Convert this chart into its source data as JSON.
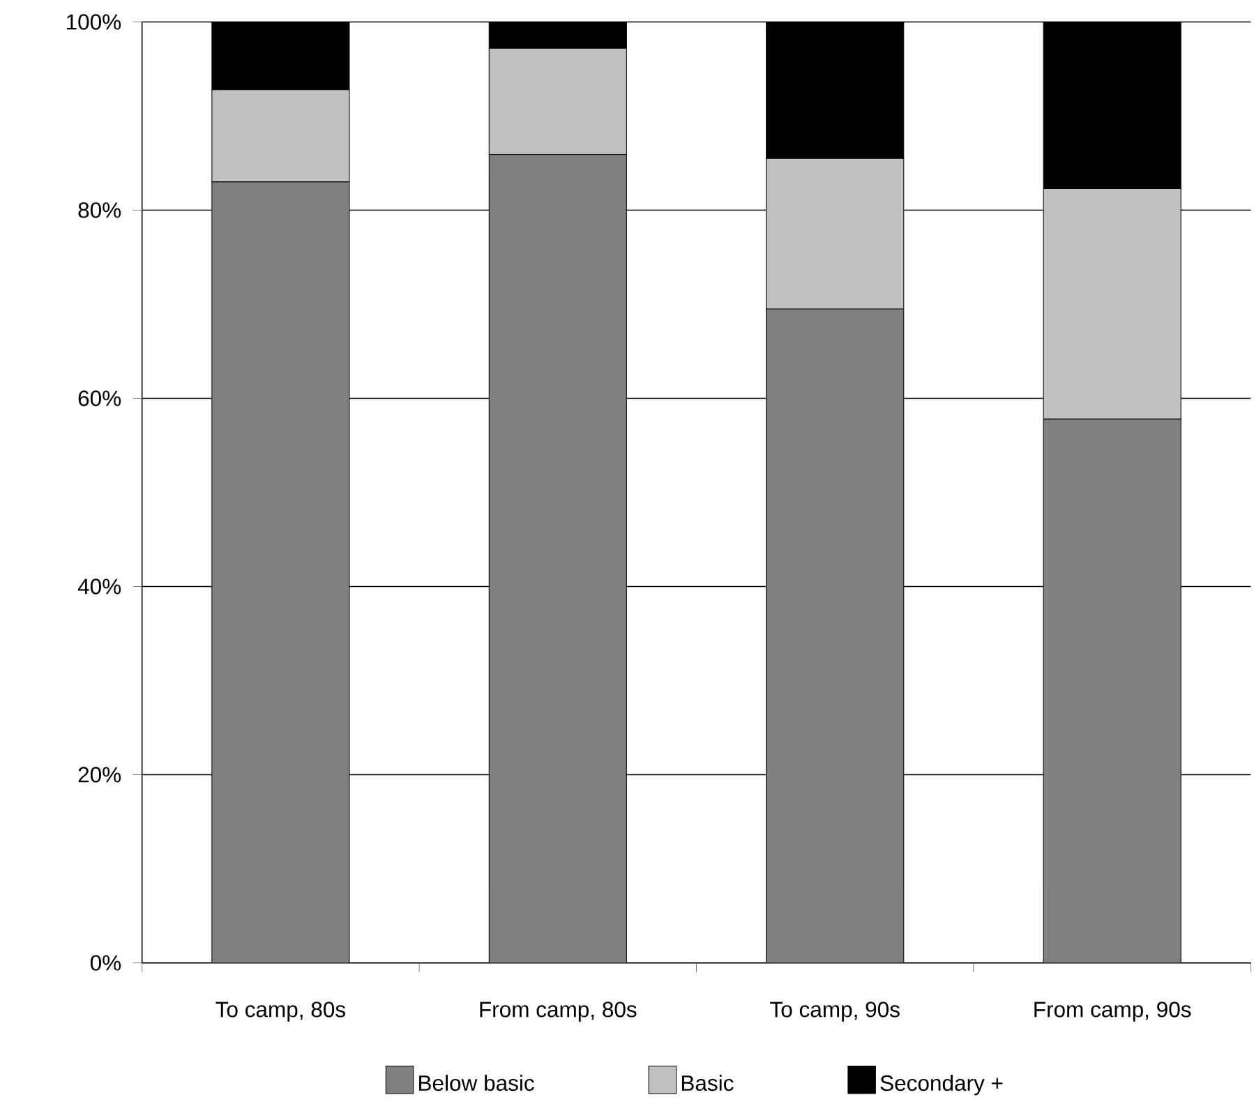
{
  "chart_data": {
    "type": "bar",
    "stacked": true,
    "categories": [
      "To camp, 80s",
      "From camp, 80s",
      "To camp, 90s",
      "From camp, 90s"
    ],
    "series": [
      {
        "name": "Below basic",
        "color": "#808080",
        "values": [
          83.0,
          85.9,
          69.5,
          57.8
        ]
      },
      {
        "name": "Basic",
        "color": "#c0c0c0",
        "values": [
          9.8,
          11.3,
          16.0,
          24.5
        ]
      },
      {
        "name": "Secondary +",
        "color": "#000000",
        "values": [
          7.2,
          2.8,
          14.5,
          17.7
        ]
      }
    ],
    "ylim": [
      0,
      100
    ],
    "yticks": [
      {
        "value": 0,
        "label": "0%"
      },
      {
        "value": 20,
        "label": "20%"
      },
      {
        "value": 40,
        "label": "40%"
      },
      {
        "value": 60,
        "label": "60%"
      },
      {
        "value": 80,
        "label": "80%"
      },
      {
        "value": 100,
        "label": "100%"
      }
    ],
    "grid": "y",
    "legend": "bottom"
  }
}
